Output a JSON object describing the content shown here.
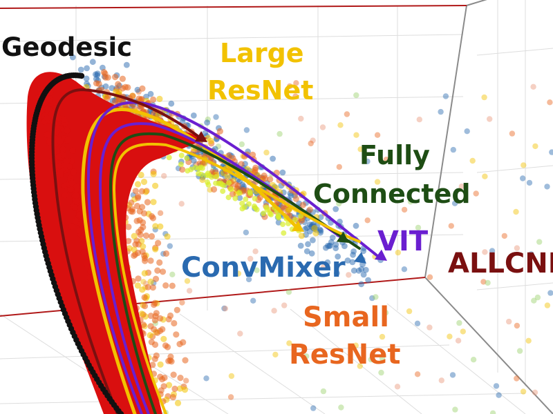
{
  "chart_data": {
    "type": "scatter",
    "projection": "3d",
    "grid": true,
    "colors": {
      "frame": "#8a8a8a",
      "red_axis": "#b01818",
      "geodesic": "#111111",
      "large_resnet": "#f2c200",
      "fully_connected": "#1e4d14",
      "vit": "#6a1fd0",
      "allcnn": "#7a1010",
      "convmixer": "#2a6ab0",
      "small_resnet": "#e8661f"
    },
    "series": [
      {
        "name": "Geodesic",
        "color": "#111111"
      },
      {
        "name": "Large ResNet",
        "color": "#f2c200"
      },
      {
        "name": "Fully Connected",
        "color": "#1e4d14"
      },
      {
        "name": "VIT",
        "color": "#6a1fd0"
      },
      {
        "name": "ALLCNN",
        "color": "#7a1010"
      },
      {
        "name": "ConvMixer",
        "color": "#2a6ab0"
      },
      {
        "name": "Small ResNet",
        "color": "#e8661f"
      }
    ],
    "labels": {
      "geodesic": "Geodesic",
      "large_resnet_1": "Large",
      "large_resnet_2": "ResNet",
      "fully_connected_1": "Fully",
      "fully_connected_2": "Connected",
      "vit": "VIT",
      "allcnn": "ALLCNN",
      "convmixer": "ConvMixer",
      "small_resnet_1": "Small",
      "small_resnet_2": "ResNet"
    }
  }
}
